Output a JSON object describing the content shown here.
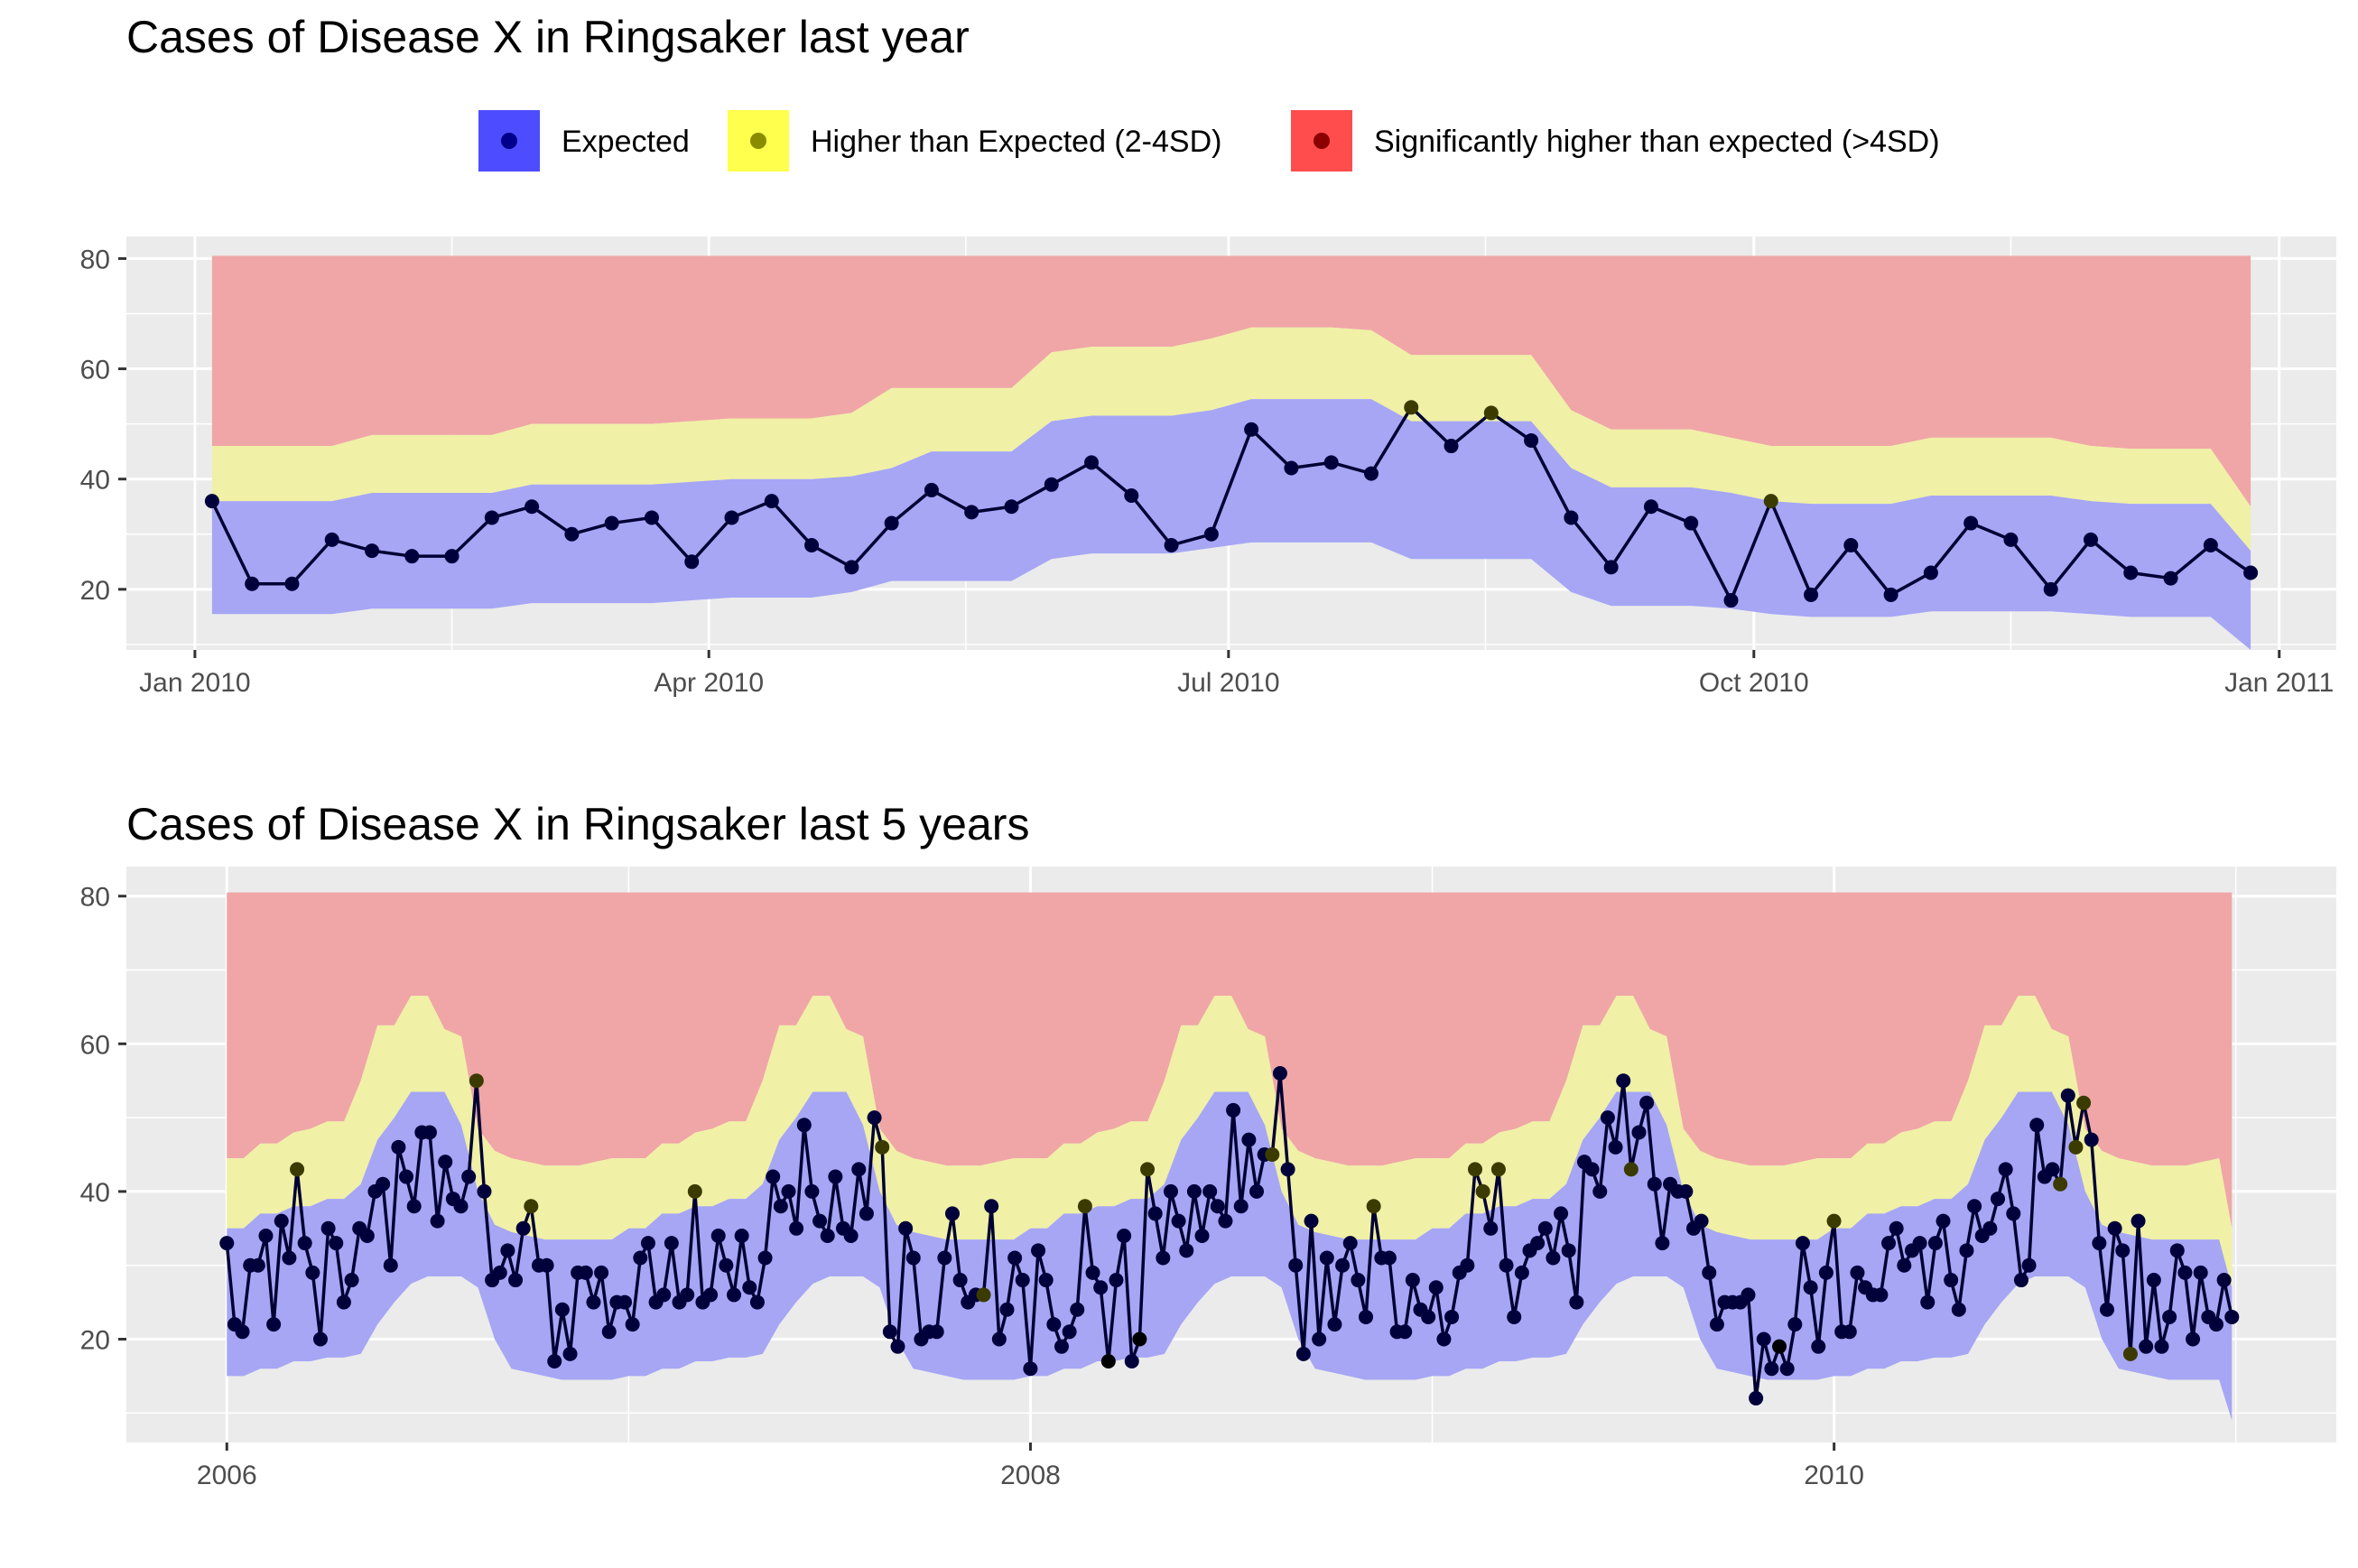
{
  "legend": {
    "items": [
      {
        "label": "Expected",
        "fill": "#4D4DFF",
        "dot": "#00008B"
      },
      {
        "label": "Higher than Expected (2-4SD)",
        "fill": "#FFFF4D",
        "dot": "#8B8B00"
      },
      {
        "label": "Significantly higher than expected (>4SD)",
        "fill": "#FF4D4D",
        "dot": "#8B0000"
      }
    ]
  },
  "colors": {
    "panel_background": "#EBEBEB",
    "grid": "#FFFFFF",
    "band_expected": "#A6A6F5",
    "band_higher": "#F0F0A6",
    "band_significant": "#F0A6A6",
    "line": "#000033",
    "point_expected": "#00003B",
    "point_higher": "#3B3B00",
    "point_significant": "#000000",
    "axis_text": "#4D4D4D",
    "title_text": "#000000"
  },
  "chart_data": [
    {
      "type": "line",
      "title": "Cases of Disease X in Ringsaker last year",
      "xlabel": "",
      "ylabel": "",
      "x_axis_type": "date",
      "xlim": [
        "2009-12-20",
        "2011-01-11"
      ],
      "ylim": [
        9,
        84
      ],
      "x_ticks": [
        {
          "date": "2010-01-01",
          "label": "Jan 2010"
        },
        {
          "date": "2010-04-01",
          "label": "Apr 2010"
        },
        {
          "date": "2010-07-01",
          "label": "Jul 2010"
        },
        {
          "date": "2010-10-01",
          "label": "Oct 2010"
        },
        {
          "date": "2011-01-01",
          "label": "Jan 2011"
        }
      ],
      "x_minor_ticks": [
        "2010-02-15",
        "2010-05-16",
        "2010-08-15",
        "2010-11-15"
      ],
      "y_ticks": [
        20,
        40,
        60,
        80
      ],
      "grid": true,
      "legend_position": "top",
      "series": [
        {
          "name": "Cases",
          "x": [
            "2010-01-04",
            "2010-01-11",
            "2010-01-18",
            "2010-01-25",
            "2010-02-01",
            "2010-02-08",
            "2010-02-15",
            "2010-02-22",
            "2010-03-01",
            "2010-03-08",
            "2010-03-15",
            "2010-03-22",
            "2010-03-29",
            "2010-04-05",
            "2010-04-12",
            "2010-04-19",
            "2010-04-26",
            "2010-05-03",
            "2010-05-10",
            "2010-05-17",
            "2010-05-24",
            "2010-05-31",
            "2010-06-07",
            "2010-06-14",
            "2010-06-21",
            "2010-06-28",
            "2010-07-05",
            "2010-07-12",
            "2010-07-19",
            "2010-07-26",
            "2010-08-02",
            "2010-08-09",
            "2010-08-16",
            "2010-08-23",
            "2010-08-30",
            "2010-09-06",
            "2010-09-13",
            "2010-09-20",
            "2010-09-27",
            "2010-10-04",
            "2010-10-11",
            "2010-10-18",
            "2010-10-25",
            "2010-11-01",
            "2010-11-08",
            "2010-11-15",
            "2010-11-22",
            "2010-11-29",
            "2010-12-06",
            "2010-12-13",
            "2010-12-20",
            "2010-12-27"
          ],
          "values": [
            36,
            21,
            21,
            29,
            27,
            26,
            26,
            33,
            35,
            30,
            32,
            33,
            25,
            33,
            36,
            28,
            24,
            32,
            38,
            34,
            35,
            39,
            43,
            37,
            28,
            30,
            49,
            42,
            43,
            41,
            53,
            46,
            52,
            47,
            33,
            24,
            35,
            32,
            18,
            36,
            19,
            28,
            19,
            23,
            32,
            29,
            20,
            29,
            23,
            22,
            28,
            23
          ],
          "status": [
            "expected",
            "expected",
            "expected",
            "expected",
            "expected",
            "expected",
            "expected",
            "expected",
            "expected",
            "expected",
            "expected",
            "expected",
            "expected",
            "expected",
            "expected",
            "expected",
            "expected",
            "expected",
            "expected",
            "expected",
            "expected",
            "expected",
            "expected",
            "expected",
            "expected",
            "expected",
            "expected",
            "expected",
            "expected",
            "expected",
            "higher",
            "expected",
            "higher",
            "expected",
            "expected",
            "expected",
            "expected",
            "expected",
            "expected",
            "higher",
            "expected",
            "expected",
            "expected",
            "expected",
            "expected",
            "expected",
            "expected",
            "expected",
            "expected",
            "expected",
            "expected",
            "expected"
          ]
        }
      ],
      "bands": {
        "x": [
          "2010-01-04",
          "2010-01-11",
          "2010-01-18",
          "2010-01-25",
          "2010-02-01",
          "2010-02-08",
          "2010-02-15",
          "2010-02-22",
          "2010-03-01",
          "2010-03-08",
          "2010-03-15",
          "2010-03-22",
          "2010-03-29",
          "2010-04-05",
          "2010-04-12",
          "2010-04-19",
          "2010-04-26",
          "2010-05-03",
          "2010-05-10",
          "2010-05-17",
          "2010-05-24",
          "2010-05-31",
          "2010-06-07",
          "2010-06-14",
          "2010-06-21",
          "2010-06-28",
          "2010-07-05",
          "2010-07-12",
          "2010-07-19",
          "2010-07-26",
          "2010-08-02",
          "2010-08-09",
          "2010-08-16",
          "2010-08-23",
          "2010-08-30",
          "2010-09-06",
          "2010-09-13",
          "2010-09-20",
          "2010-09-27",
          "2010-10-04",
          "2010-10-11",
          "2010-10-18",
          "2010-10-25",
          "2010-11-01",
          "2010-11-08",
          "2010-11-15",
          "2010-11-22",
          "2010-11-29",
          "2010-12-06",
          "2010-12-13",
          "2010-12-20",
          "2010-12-27"
        ],
        "expected_low": [
          15.5,
          15.5,
          15.5,
          15.5,
          16.5,
          16.5,
          16.5,
          16.5,
          17.5,
          17.5,
          17.5,
          17.5,
          18,
          18.5,
          18.5,
          18.5,
          19.5,
          21.5,
          21.5,
          21.5,
          21.5,
          25.5,
          26.5,
          26.5,
          26.5,
          27.5,
          28.5,
          28.5,
          28.5,
          28.5,
          25.5,
          25.5,
          25.5,
          25.5,
          19.5,
          17,
          17,
          17,
          16.5,
          15.5,
          15,
          15,
          15,
          16,
          16,
          16,
          16,
          15.5,
          15,
          15,
          15,
          9
        ],
        "expected_high": [
          36,
          36,
          36,
          36,
          37.5,
          37.5,
          37.5,
          37.5,
          39,
          39,
          39,
          39,
          39.5,
          40,
          40,
          40,
          40.5,
          42,
          45,
          45,
          45,
          50.5,
          51.5,
          51.5,
          51.5,
          52.5,
          54.5,
          54.5,
          54.5,
          54.5,
          50.5,
          50.5,
          50.5,
          50.5,
          42,
          38.5,
          38.5,
          38.5,
          37.5,
          36,
          35.5,
          35.5,
          35.5,
          37,
          37,
          37,
          37,
          36,
          35.5,
          35.5,
          35.5,
          27
        ],
        "higher_high": [
          46,
          46,
          46,
          46,
          48,
          48,
          48,
          48,
          50,
          50,
          50,
          50,
          50.5,
          51,
          51,
          51,
          52,
          56.5,
          56.5,
          56.5,
          56.5,
          63,
          64,
          64,
          64,
          65.5,
          67.5,
          67.5,
          67.5,
          67,
          62.5,
          62.5,
          62.5,
          62.5,
          52.5,
          49,
          49,
          49,
          47.5,
          46,
          46,
          46,
          46,
          47.5,
          47.5,
          47.5,
          47.5,
          46,
          45.5,
          45.5,
          45.5,
          35
        ],
        "top": 80.5
      }
    },
    {
      "type": "line",
      "title": "Cases of Disease X in Ringsaker last 5 years",
      "xlabel": "",
      "ylabel": "",
      "x_axis_type": "year",
      "xlim": [
        2005.75,
        2011.25
      ],
      "ylim": [
        6,
        84
      ],
      "x_ticks": [
        {
          "value": 2006,
          "label": "2006"
        },
        {
          "value": 2008,
          "label": "2008"
        },
        {
          "value": 2010,
          "label": "2010"
        }
      ],
      "x_minor_ticks": [
        2007,
        2009,
        2011
      ],
      "y_ticks": [
        20,
        40,
        60,
        80
      ],
      "grid": true,
      "series": [
        {
          "name": "Cases",
          "x_start": 2006.0,
          "x_end": 2010.99,
          "values": [
            33,
            22,
            21,
            30,
            30,
            34,
            22,
            36,
            31,
            43,
            33,
            29,
            20,
            35,
            33,
            25,
            28,
            35,
            34,
            40,
            41,
            30,
            46,
            42,
            38,
            48,
            48,
            36,
            44,
            39,
            38,
            42,
            55,
            40,
            28,
            29,
            32,
            28,
            35,
            38,
            30,
            30,
            17,
            24,
            18,
            29,
            29,
            25,
            29,
            21,
            25,
            25,
            22,
            31,
            33,
            25,
            26,
            33,
            25,
            26,
            40,
            25,
            26,
            34,
            30,
            26,
            34,
            27,
            25,
            31,
            42,
            38,
            40,
            35,
            49,
            40,
            36,
            34,
            42,
            35,
            34,
            43,
            37,
            50,
            46,
            21,
            19,
            35,
            31,
            20,
            21,
            21,
            31,
            37,
            28,
            25,
            26,
            26,
            38,
            20,
            24,
            31,
            28,
            16,
            32,
            28,
            22,
            19,
            21,
            24,
            38,
            29,
            27,
            17,
            28,
            34,
            17,
            20,
            43,
            37,
            31,
            40,
            36,
            32,
            40,
            34,
            40,
            38,
            36,
            51,
            38,
            47,
            40,
            45,
            45,
            56,
            43,
            30,
            18,
            36,
            20,
            31,
            22,
            30,
            33,
            28,
            23,
            38,
            31,
            31,
            21,
            21,
            28,
            24,
            23,
            27,
            20,
            23,
            29,
            30,
            43,
            40,
            35,
            43,
            30,
            23,
            29,
            32,
            33,
            35,
            31,
            37,
            32,
            25,
            44,
            43,
            40,
            50,
            46,
            55,
            43,
            48,
            52,
            41,
            33,
            41,
            40,
            40,
            35,
            36,
            29,
            22,
            25,
            25,
            25,
            26,
            12,
            20,
            16,
            19,
            16,
            22,
            33,
            27,
            19,
            29,
            36,
            21,
            21,
            29,
            27,
            26,
            26,
            33,
            35,
            30,
            32,
            33,
            25,
            33,
            36,
            28,
            24,
            32,
            38,
            34,
            35,
            39,
            43,
            37,
            28,
            30,
            49,
            42,
            43,
            41,
            53,
            46,
            52,
            47,
            33,
            24,
            35,
            32,
            18,
            36,
            19,
            28,
            19,
            23,
            32,
            29,
            20,
            29,
            23,
            22,
            28,
            23
          ],
          "higher_indices": [
            9,
            32,
            39,
            60,
            84,
            97,
            110,
            118,
            134,
            147,
            160,
            161,
            163,
            180,
            206,
            235,
            237,
            238,
            244
          ],
          "significant_indices": [
            113,
            117,
            199
          ]
        }
      ],
      "bands": {
        "yearly_profile": {
          "expected_low": [
            15,
            15,
            16,
            16,
            17,
            17,
            17.5,
            17.5,
            18,
            22,
            25,
            27.5,
            28.5,
            28.5,
            28.5,
            27,
            20,
            16,
            15.5,
            15,
            14.5,
            14.5,
            14.5,
            14.5
          ],
          "expected_high": [
            35,
            35,
            37,
            37,
            38,
            38,
            39,
            39,
            41,
            47,
            50,
            53.5,
            53.5,
            53.5,
            49,
            40,
            35.5,
            34.5,
            34,
            33.5,
            33.5,
            33.5,
            33.5,
            33.5
          ],
          "higher_high": [
            44.5,
            44.5,
            46.5,
            46.5,
            48,
            48.5,
            49.5,
            49.5,
            55,
            62.5,
            62.5,
            66.5,
            66.5,
            62,
            61,
            48.5,
            45.5,
            44.5,
            44,
            43.5,
            43.5,
            43.5,
            44,
            44.5
          ]
        },
        "top": 80.5
      }
    }
  ]
}
